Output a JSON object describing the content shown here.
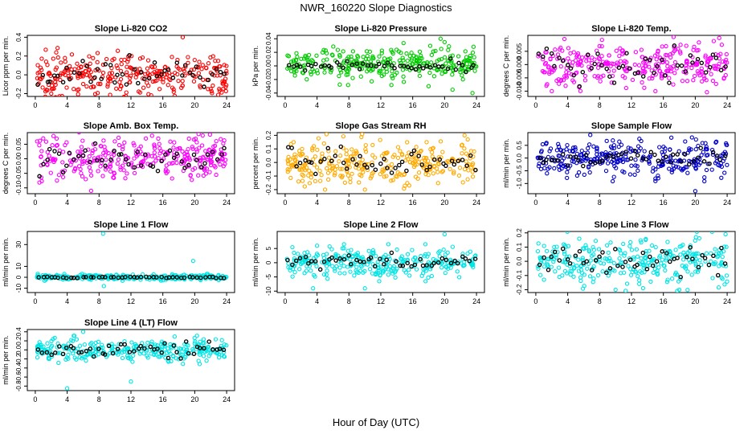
{
  "figure": {
    "title": "NWR_160220  Slope Diagnostics",
    "xlabel": "Hour of Day (UTC)"
  },
  "chart_data": [
    {
      "type": "scatter",
      "title": "Slope Li-820 CO2",
      "ylabel": "Licor ppm per min.",
      "xlim": [
        -1,
        25
      ],
      "ylim": [
        -0.23,
        0.42
      ],
      "xticks": [
        "0",
        "4",
        "8",
        "12",
        "16",
        "20",
        "24"
      ],
      "yticks": [
        "-0.2",
        "0.0",
        "0.2",
        "0.4"
      ],
      "colors": {
        "main": "#ff0000",
        "overlay": "#000000"
      },
      "cloud": {
        "center": 0.0,
        "spread": 0.11,
        "outliers": [
          [
            2.0,
            -0.2
          ],
          [
            18.5,
            0.4
          ],
          [
            22.0,
            -0.15
          ]
        ]
      },
      "overlay": {
        "center": 0.0,
        "spread": 0.07
      }
    },
    {
      "type": "scatter",
      "title": "Slope Li-820 Pressure",
      "ylabel": "kPa per min.",
      "xlim": [
        -1,
        25
      ],
      "ylim": [
        -0.045,
        0.045
      ],
      "xticks": [
        "0",
        "4",
        "8",
        "12",
        "16",
        "20",
        "24"
      ],
      "yticks": [
        "-0.04",
        "-0.02",
        "0.00",
        "0.02",
        "0.04"
      ],
      "colors": {
        "main": "#00cc00",
        "overlay": "#000000"
      },
      "cloud": {
        "center": 0.003,
        "spread": 0.012,
        "outliers": [
          [
            19.5,
            0.04
          ],
          [
            18.0,
            -0.03
          ],
          [
            21.0,
            -0.035
          ],
          [
            23.5,
            -0.04
          ],
          [
            20.0,
            0.035
          ]
        ]
      },
      "overlay": {
        "center": 0.0,
        "spread": 0.004
      }
    },
    {
      "type": "scatter",
      "title": "Slope Li-820 Temp.",
      "ylabel": "degrees C per min.",
      "xlim": [
        -1,
        25
      ],
      "ylim": [
        -0.012,
        0.011
      ],
      "xticks": [
        "0",
        "4",
        "8",
        "12",
        "16",
        "20",
        "24"
      ],
      "yticks": [
        "-0.010",
        "-0.005",
        "0.000",
        "0.005"
      ],
      "colors": {
        "main": "#ff00ff",
        "overlay": "#000000"
      },
      "cloud": {
        "center": 0.0,
        "spread": 0.004,
        "outliers": [
          [
            23.0,
            0.01
          ],
          [
            2.0,
            -0.01
          ],
          [
            15.0,
            -0.01
          ]
        ]
      },
      "overlay": {
        "center": 0.0,
        "spread": 0.003
      }
    },
    {
      "type": "scatter",
      "title": "Slope Amb. Box Temp.",
      "ylabel": "degrees C per min.",
      "xlim": [
        -1,
        25
      ],
      "ylim": [
        -0.12,
        0.09
      ],
      "xticks": [
        "0",
        "4",
        "8",
        "12",
        "16",
        "20",
        "24"
      ],
      "yticks": [
        "-0.10",
        "-0.05",
        "0.00",
        "0.05"
      ],
      "colors": {
        "main": "#ff00ff",
        "overlay": "#000000"
      },
      "cloud": {
        "center": 0.0,
        "spread": 0.035,
        "outliers": [
          [
            7.0,
            -0.11
          ],
          [
            1.0,
            0.07
          ],
          [
            21.0,
            0.08
          ]
        ]
      },
      "overlay": {
        "center": 0.0,
        "spread": 0.025
      }
    },
    {
      "type": "scatter",
      "title": "Slope Gas Stream RH",
      "ylabel": "percent per min.",
      "xlim": [
        -1,
        25
      ],
      "ylim": [
        -0.23,
        0.22
      ],
      "xticks": [
        "0",
        "4",
        "8",
        "12",
        "16",
        "20",
        "24"
      ],
      "yticks": [
        "-0.2",
        "-0.1",
        "0.0",
        "0.1",
        "0.2"
      ],
      "colors": {
        "main": "#ffaa00",
        "overlay": "#000000"
      },
      "cloud": {
        "center": 0.0,
        "spread": 0.08,
        "outliers": [
          [
            5.0,
            -0.2
          ],
          [
            22.5,
            0.2
          ],
          [
            10.0,
            -0.2
          ]
        ]
      },
      "overlay": {
        "center": 0.0,
        "spread": 0.05
      }
    },
    {
      "type": "scatter",
      "title": "Slope Sample Flow",
      "ylabel": "ml/min per min.",
      "xlim": [
        -1,
        25
      ],
      "ylim": [
        -1.4,
        1.0
      ],
      "xticks": [
        "0",
        "4",
        "8",
        "12",
        "16",
        "20",
        "24"
      ],
      "yticks": [
        "-1.0",
        "-0.5",
        "0.0",
        "0.5"
      ],
      "colors": {
        "main": "#0000cc",
        "overlay": "#000000"
      },
      "cloud": {
        "center": 0.0,
        "spread": 0.35,
        "outliers": [
          [
            20.0,
            -1.3
          ],
          [
            15.0,
            -0.9
          ],
          [
            17.0,
            0.8
          ]
        ]
      },
      "overlay": {
        "center": 0.0,
        "spread": 0.15
      }
    },
    {
      "type": "scatter",
      "title": "Slope Line 1 Flow",
      "ylabel": "ml/min per min.",
      "xlim": [
        -1,
        25
      ],
      "ylim": [
        -14,
        42
      ],
      "xticks": [
        "0",
        "4",
        "8",
        "12",
        "16",
        "20",
        "24"
      ],
      "yticks": [
        "-10",
        "0",
        "10",
        "30"
      ],
      "colors": {
        "main": "#00e5e5",
        "overlay": "#000000"
      },
      "cloud": {
        "center": 0.0,
        "spread": 1.2,
        "outliers": [
          [
            8.5,
            40.0
          ],
          [
            8.6,
            -8.0
          ],
          [
            19.8,
            15.0
          ]
        ]
      },
      "overlay": {
        "center": 0.0,
        "spread": 0.4
      }
    },
    {
      "type": "scatter",
      "title": "Slope Line 2 Flow",
      "ylabel": "ml/min per min.",
      "xlim": [
        -1,
        25
      ],
      "ylim": [
        -10.5,
        11
      ],
      "xticks": [
        "0",
        "4",
        "8",
        "12",
        "16",
        "20",
        "24"
      ],
      "yticks": [
        "-10",
        "-5",
        "0",
        "5"
      ],
      "colors": {
        "main": "#00e5e5",
        "overlay": "#000000"
      },
      "cloud": {
        "center": 0.0,
        "spread": 2.5,
        "outliers": [
          [
            20.0,
            10.0
          ],
          [
            10.0,
            -9.0
          ],
          [
            3.5,
            -9.0
          ]
        ]
      },
      "overlay": {
        "center": 0.5,
        "spread": 1.0
      }
    },
    {
      "type": "scatter",
      "title": "Slope Line 3 Flow",
      "ylabel": "ml/min per min.",
      "xlim": [
        -1,
        25
      ],
      "ylim": [
        -0.22,
        0.21
      ],
      "xticks": [
        "0",
        "4",
        "8",
        "12",
        "16",
        "20",
        "24"
      ],
      "yticks": [
        "-0.2",
        "-0.1",
        "0.0",
        "0.1",
        "0.2"
      ],
      "colors": {
        "main": "#00e5e5",
        "overlay": "#000000"
      },
      "cloud": {
        "center": 0.0,
        "spread": 0.08,
        "outliers": [
          [
            23.8,
            0.19
          ],
          [
            18.0,
            -0.2
          ],
          [
            10.0,
            -0.2
          ]
        ]
      },
      "overlay": {
        "center": 0.0,
        "spread": 0.06
      }
    },
    {
      "type": "scatter",
      "title": "Slope Line 4 (LT) Flow",
      "ylabel": "ml/min per min.",
      "xlim": [
        -1,
        25
      ],
      "ylim": [
        -0.9,
        0.45
      ],
      "xticks": [
        "0",
        "4",
        "8",
        "12",
        "16",
        "20",
        "24"
      ],
      "yticks": [
        "-0.8",
        "-0.6",
        "-0.4",
        "-0.2",
        "0.0",
        "0.2",
        "0.4"
      ],
      "colors": {
        "main": "#00e5e5",
        "overlay": "#000000"
      },
      "cloud": {
        "center": 0.0,
        "spread": 0.12,
        "outliers": [
          [
            4.0,
            -0.85
          ],
          [
            12.0,
            -0.7
          ],
          [
            6.0,
            0.4
          ]
        ]
      },
      "overlay": {
        "center": 0.0,
        "spread": 0.08
      }
    }
  ]
}
